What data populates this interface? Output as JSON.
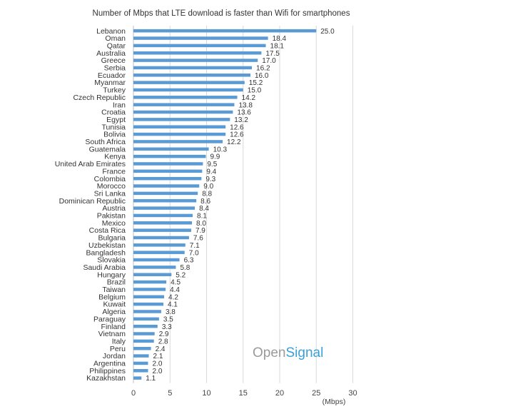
{
  "chart_data": {
    "type": "bar",
    "orientation": "horizontal",
    "title": "Number of Mbps that LTE download is faster than Wifi for smartphones",
    "xlabel": "(Mbps)",
    "xlim": [
      0,
      30
    ],
    "xticks": [
      0,
      5,
      10,
      15,
      20,
      25,
      30
    ],
    "grid": true,
    "bar_color": "#5b9bd5",
    "grid_color": "#d9d9d9",
    "watermark": {
      "part1": "Open",
      "part2": "Signal",
      "color1": "#9a9a9a",
      "color2": "#3aa0d8"
    },
    "categories": [
      "Lebanon",
      "Oman",
      "Qatar",
      "Australia",
      "Greece",
      "Serbia",
      "Ecuador",
      "Myanmar",
      "Turkey",
      "Czech Republic",
      "Iran",
      "Croatia",
      "Egypt",
      "Tunisia",
      "Bolivia",
      "South Africa",
      "Guatemala",
      "Kenya",
      "United Arab Emirates",
      "France",
      "Colombia",
      "Morocco",
      "Sri Lanka",
      "Dominican Republic",
      "Austria",
      "Pakistan",
      "Mexico",
      "Costa Rica",
      "Bulgaria",
      "Uzbekistan",
      "Bangladesh",
      "Slovakia",
      "Saudi Arabia",
      "Hungary",
      "Brazil",
      "Taiwan",
      "Belgium",
      "Kuwait",
      "Algeria",
      "Paraguay",
      "Finland",
      "Vietnam",
      "Italy",
      "Peru",
      "Jordan",
      "Argentina",
      "Philippines",
      "Kazakhstan"
    ],
    "values": [
      25.0,
      18.4,
      18.1,
      17.5,
      17.0,
      16.2,
      16.0,
      15.2,
      15.0,
      14.2,
      13.8,
      13.6,
      13.2,
      12.6,
      12.6,
      12.2,
      10.3,
      9.9,
      9.5,
      9.4,
      9.3,
      9.0,
      8.8,
      8.6,
      8.4,
      8.1,
      8.0,
      7.9,
      7.6,
      7.1,
      7.0,
      6.3,
      5.8,
      5.2,
      4.5,
      4.4,
      4.2,
      4.1,
      3.8,
      3.5,
      3.3,
      2.9,
      2.8,
      2.4,
      2.1,
      2.0,
      2.0,
      1.1
    ]
  }
}
